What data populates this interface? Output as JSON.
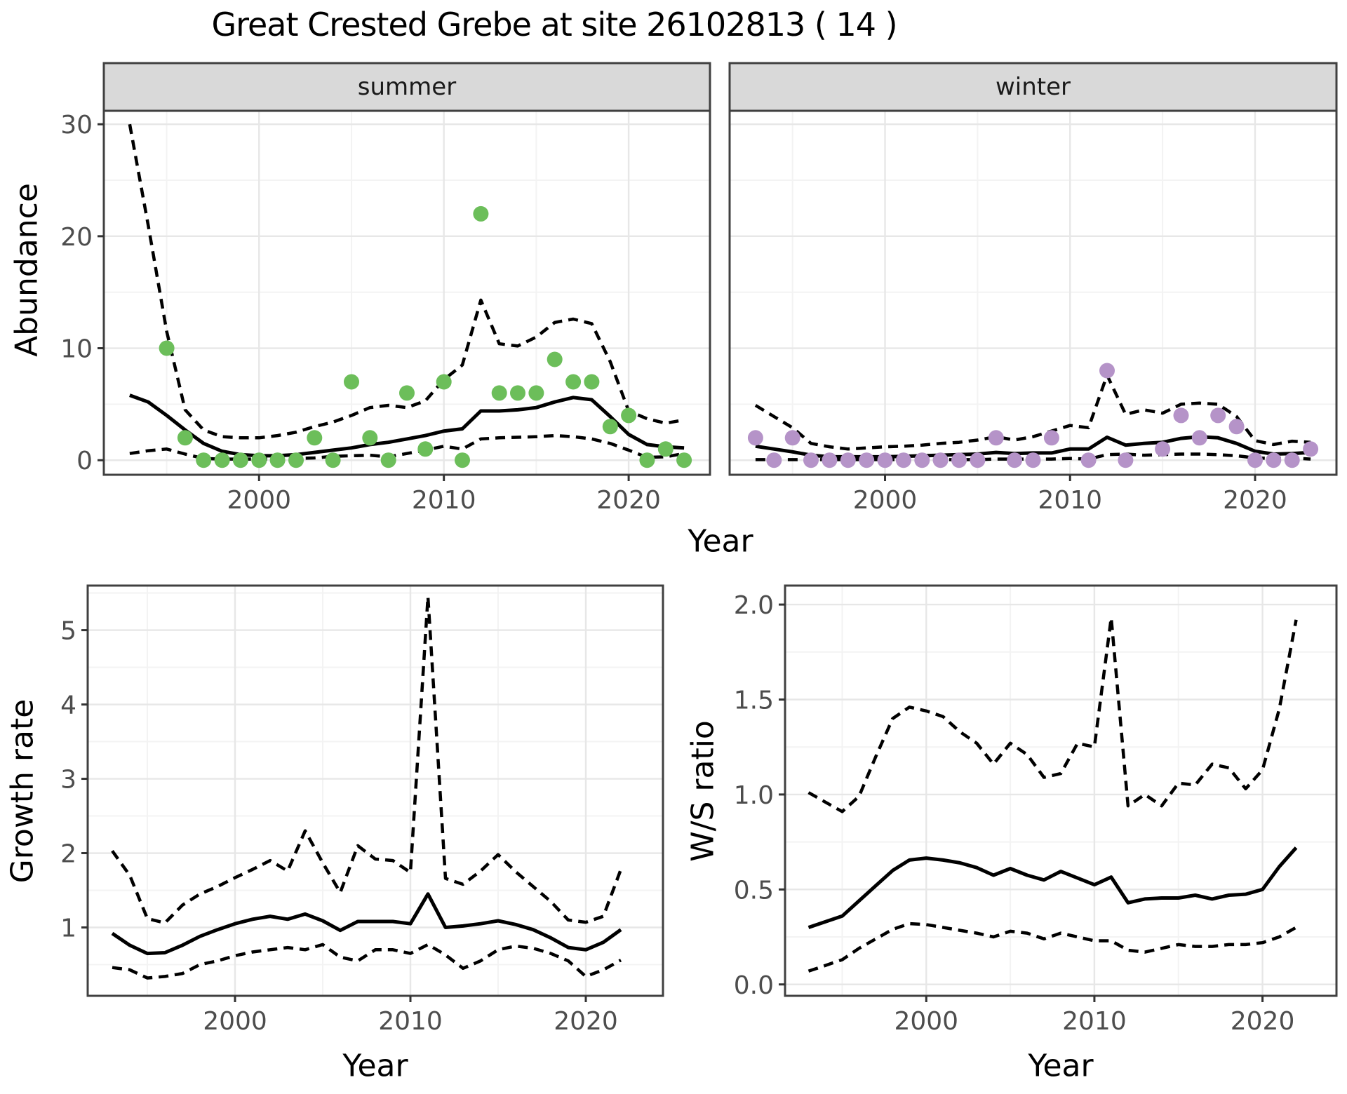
{
  "title": "Great Crested Grebe at site 26102813 ( 14 )",
  "colors": {
    "point_summer": "#6cbe5a",
    "point_winter": "#b593c8",
    "line": "#000000",
    "strip_bg": "#d9d9d9",
    "panel_border": "#404040",
    "tick_mark": "#333333",
    "grid_major": "#e7e7e7",
    "grid_minor": "#f3f3f3",
    "tick_text": "#4d4d4d"
  },
  "chart_data": [
    {
      "id": "abundance_summer",
      "type": "line+scatter",
      "facet_label": "summer",
      "ylabel": "Abundance",
      "xlabel": "Year",
      "xlim": [
        1991.6,
        2024.4
      ],
      "ylim": [
        -1.3,
        31.2
      ],
      "xticks": [
        2000,
        2010,
        2020
      ],
      "xtick_labels": [
        "2000",
        "2010",
        "2020"
      ],
      "xticks_minor": [
        1995,
        2005,
        2015
      ],
      "yticks": [
        0,
        10,
        20,
        30
      ],
      "ytick_labels": [
        "0",
        "10",
        "20",
        "30"
      ],
      "yticks_minor": [
        5,
        15,
        25
      ],
      "points": {
        "color_key": "point_summer",
        "x": [
          1995,
          1996,
          1997,
          1998,
          1999,
          2000,
          2001,
          2002,
          2003,
          2004,
          2005,
          2006,
          2007,
          2008,
          2009,
          2010,
          2011,
          2012,
          2013,
          2014,
          2015,
          2016,
          2017,
          2018,
          2019,
          2020,
          2021,
          2022,
          2023
        ],
        "y": [
          10,
          2,
          0,
          0,
          0,
          0,
          0,
          0,
          2,
          0,
          7,
          2,
          0,
          6,
          1,
          7,
          0,
          22,
          6,
          6,
          6,
          9,
          7,
          7,
          3,
          4,
          0,
          1,
          0
        ]
      },
      "series": [
        {
          "name": "upper-ci",
          "style": "dashed",
          "x": [
            1993,
            1994,
            1995,
            1996,
            1997,
            1998,
            1999,
            2000,
            2001,
            2002,
            2003,
            2004,
            2005,
            2006,
            2007,
            2008,
            2009,
            2010,
            2011,
            2012,
            2013,
            2014,
            2015,
            2016,
            2017,
            2018,
            2019,
            2020,
            2021,
            2022,
            2023
          ],
          "y": [
            30,
            21,
            11.5,
            4.5,
            2.7,
            2.1,
            2.0,
            2.0,
            2.2,
            2.5,
            3.0,
            3.4,
            4.0,
            4.7,
            4.9,
            4.7,
            5.3,
            7.2,
            8.5,
            14.3,
            10.4,
            10.2,
            11.0,
            12.3,
            12.6,
            12.2,
            8.8,
            4.4,
            3.7,
            3.3,
            3.6
          ]
        },
        {
          "name": "lower-ci",
          "style": "dashed",
          "x": [
            1993,
            1994,
            1995,
            1996,
            1997,
            1998,
            1999,
            2000,
            2001,
            2002,
            2003,
            2004,
            2005,
            2006,
            2007,
            2008,
            2009,
            2010,
            2011,
            2012,
            2013,
            2014,
            2015,
            2016,
            2017,
            2018,
            2019,
            2020,
            2021,
            2022,
            2023
          ],
          "y": [
            0.6,
            0.85,
            1.0,
            0.55,
            0.15,
            0.1,
            0.1,
            0.1,
            0.1,
            0.15,
            0.2,
            0.35,
            0.4,
            0.45,
            0.3,
            0.6,
            0.9,
            1.25,
            1.0,
            1.9,
            2.0,
            2.05,
            2.1,
            2.2,
            2.1,
            1.9,
            1.5,
            0.9,
            0.25,
            0.3,
            0.6
          ]
        },
        {
          "name": "fit",
          "style": "solid",
          "x": [
            1993,
            1994,
            1995,
            1996,
            1997,
            1998,
            1999,
            2000,
            2001,
            2002,
            2003,
            2004,
            2005,
            2006,
            2007,
            2008,
            2009,
            2010,
            2011,
            2012,
            2013,
            2014,
            2015,
            2016,
            2017,
            2018,
            2019,
            2020,
            2021,
            2022,
            2023
          ],
          "y": [
            5.8,
            5.2,
            4.0,
            2.7,
            1.5,
            0.8,
            0.5,
            0.4,
            0.4,
            0.5,
            0.7,
            0.9,
            1.1,
            1.4,
            1.6,
            1.9,
            2.2,
            2.6,
            2.8,
            4.4,
            4.4,
            4.5,
            4.7,
            5.2,
            5.6,
            5.4,
            3.9,
            2.3,
            1.4,
            1.2,
            1.1
          ]
        }
      ]
    },
    {
      "id": "abundance_winter",
      "type": "line+scatter",
      "facet_label": "winter",
      "ylabel": "",
      "xlabel": "Year",
      "xlim": [
        1991.6,
        2024.4
      ],
      "ylim": [
        -1.3,
        31.2
      ],
      "xticks": [
        2000,
        2010,
        2020
      ],
      "xtick_labels": [
        "2000",
        "2010",
        "2020"
      ],
      "xticks_minor": [
        1995,
        2005,
        2015
      ],
      "yticks": [
        0,
        10,
        20,
        30
      ],
      "ytick_labels": [
        "0",
        "10",
        "20",
        "30"
      ],
      "yticks_minor": [
        5,
        15,
        25
      ],
      "points": {
        "color_key": "point_winter",
        "x": [
          1993,
          1994,
          1995,
          1996,
          1997,
          1998,
          1999,
          2000,
          2001,
          2002,
          2003,
          2004,
          2005,
          2006,
          2007,
          2008,
          2009,
          2011,
          2012,
          2013,
          2015,
          2016,
          2017,
          2018,
          2019,
          2020,
          2021,
          2022,
          2023
        ],
        "y": [
          2,
          0,
          2,
          0,
          0,
          0,
          0,
          0,
          0,
          0,
          0,
          0,
          0,
          2,
          0,
          0,
          2,
          0,
          8,
          0,
          1,
          4,
          2,
          4,
          3,
          0,
          0,
          0,
          1
        ]
      },
      "series": [
        {
          "name": "upper-ci",
          "style": "dashed",
          "x": [
            1993,
            1994,
            1995,
            1996,
            1997,
            1998,
            1999,
            2000,
            2001,
            2002,
            2003,
            2004,
            2005,
            2006,
            2007,
            2008,
            2009,
            2010,
            2011,
            2012,
            2013,
            2014,
            2015,
            2016,
            2017,
            2018,
            2019,
            2020,
            2021,
            2022,
            2023
          ],
          "y": [
            4.9,
            3.9,
            2.9,
            1.5,
            1.2,
            1.0,
            1.1,
            1.2,
            1.25,
            1.35,
            1.5,
            1.6,
            1.8,
            2.1,
            1.8,
            2.1,
            2.6,
            3.1,
            2.9,
            7.6,
            4.1,
            4.5,
            4.2,
            5.0,
            5.1,
            5.0,
            3.9,
            1.75,
            1.4,
            1.7,
            1.6
          ]
        },
        {
          "name": "lower-ci",
          "style": "dashed",
          "x": [
            1993,
            1994,
            1995,
            1996,
            1997,
            1998,
            1999,
            2000,
            2001,
            2002,
            2003,
            2004,
            2005,
            2006,
            2007,
            2008,
            2009,
            2010,
            2011,
            2012,
            2013,
            2014,
            2015,
            2016,
            2017,
            2018,
            2019,
            2020,
            2021,
            2022,
            2023
          ],
          "y": [
            0.05,
            0.05,
            0.05,
            0.05,
            0.05,
            0.05,
            0.05,
            0.05,
            0.05,
            0.05,
            0.05,
            0.05,
            0.05,
            0.1,
            0.1,
            0.1,
            0.1,
            0.15,
            0.1,
            0.5,
            0.55,
            0.45,
            0.5,
            0.55,
            0.55,
            0.5,
            0.4,
            0.2,
            0.15,
            0.2,
            0.1
          ]
        },
        {
          "name": "fit",
          "style": "solid",
          "x": [
            1993,
            1994,
            1995,
            1996,
            1997,
            1998,
            1999,
            2000,
            2001,
            2002,
            2003,
            2004,
            2005,
            2006,
            2007,
            2008,
            2009,
            2010,
            2011,
            2012,
            2013,
            2014,
            2015,
            2016,
            2017,
            2018,
            2019,
            2020,
            2021,
            2022,
            2023
          ],
          "y": [
            1.25,
            1.0,
            0.75,
            0.45,
            0.3,
            0.3,
            0.3,
            0.3,
            0.35,
            0.4,
            0.45,
            0.5,
            0.55,
            0.7,
            0.6,
            0.65,
            0.65,
            1.0,
            1.0,
            2.05,
            1.35,
            1.5,
            1.6,
            1.95,
            2.1,
            2.0,
            1.5,
            0.8,
            0.55,
            0.6,
            0.7
          ]
        }
      ]
    },
    {
      "id": "growth_rate",
      "type": "line",
      "facet_label": "",
      "ylabel": "Growth rate",
      "xlabel": "Year",
      "xlim": [
        1991.6,
        2024.4
      ],
      "ylim": [
        0.08,
        5.6
      ],
      "xticks": [
        2000,
        2010,
        2020
      ],
      "xtick_labels": [
        "2000",
        "2010",
        "2020"
      ],
      "xticks_minor": [
        1995,
        2005,
        2015
      ],
      "yticks": [
        1,
        2,
        3,
        4,
        5
      ],
      "ytick_labels": [
        "1",
        "2",
        "3",
        "4",
        "5"
      ],
      "yticks_minor": [
        0.5,
        1.5,
        2.5,
        3.5,
        4.5,
        5.5
      ],
      "points": null,
      "series": [
        {
          "name": "upper-ci",
          "style": "dashed",
          "x": [
            1993,
            1994,
            1995,
            1996,
            1997,
            1998,
            1999,
            2000,
            2001,
            2002,
            2003,
            2004,
            2005,
            2006,
            2007,
            2008,
            2009,
            2010,
            2011,
            2012,
            2013,
            2014,
            2015,
            2016,
            2017,
            2018,
            2019,
            2020,
            2021,
            2022
          ],
          "y": [
            2.03,
            1.7,
            1.12,
            1.06,
            1.3,
            1.45,
            1.55,
            1.67,
            1.78,
            1.9,
            1.76,
            2.3,
            1.87,
            1.47,
            2.1,
            1.92,
            1.9,
            1.74,
            5.45,
            1.66,
            1.58,
            1.76,
            1.98,
            1.75,
            1.55,
            1.35,
            1.1,
            1.07,
            1.15,
            1.78
          ]
        },
        {
          "name": "lower-ci",
          "style": "dashed",
          "x": [
            1993,
            1994,
            1995,
            1996,
            1997,
            1998,
            1999,
            2000,
            2001,
            2002,
            2003,
            2004,
            2005,
            2006,
            2007,
            2008,
            2009,
            2010,
            2011,
            2012,
            2013,
            2014,
            2015,
            2016,
            2017,
            2018,
            2019,
            2020,
            2021,
            2022
          ],
          "y": [
            0.46,
            0.43,
            0.32,
            0.34,
            0.38,
            0.5,
            0.55,
            0.62,
            0.67,
            0.7,
            0.73,
            0.7,
            0.77,
            0.6,
            0.55,
            0.7,
            0.7,
            0.65,
            0.77,
            0.63,
            0.45,
            0.55,
            0.7,
            0.75,
            0.72,
            0.65,
            0.55,
            0.34,
            0.43,
            0.56
          ]
        },
        {
          "name": "fit",
          "style": "solid",
          "x": [
            1993,
            1994,
            1995,
            1996,
            1997,
            1998,
            1999,
            2000,
            2001,
            2002,
            2003,
            2004,
            2005,
            2006,
            2007,
            2008,
            2009,
            2010,
            2011,
            2012,
            2013,
            2014,
            2015,
            2016,
            2017,
            2018,
            2019,
            2020,
            2021,
            2022
          ],
          "y": [
            0.92,
            0.76,
            0.65,
            0.66,
            0.76,
            0.88,
            0.97,
            1.05,
            1.11,
            1.15,
            1.11,
            1.18,
            1.09,
            0.96,
            1.08,
            1.08,
            1.08,
            1.05,
            1.45,
            1.0,
            1.02,
            1.05,
            1.09,
            1.04,
            0.97,
            0.86,
            0.73,
            0.7,
            0.8,
            0.97
          ]
        }
      ]
    },
    {
      "id": "ws_ratio",
      "type": "line",
      "facet_label": "",
      "ylabel": "W/S ratio",
      "xlabel": "Year",
      "xlim": [
        1991.6,
        2024.4
      ],
      "ylim": [
        -0.06,
        2.1
      ],
      "xticks": [
        2000,
        2010,
        2020
      ],
      "xtick_labels": [
        "2000",
        "2010",
        "2020"
      ],
      "xticks_minor": [
        1995,
        2005,
        2015
      ],
      "yticks": [
        0.0,
        0.5,
        1.0,
        1.5,
        2.0
      ],
      "ytick_labels": [
        "0.0",
        "0.5",
        "1.0",
        "1.5",
        "2.0"
      ],
      "yticks_minor": [
        0.25,
        0.75,
        1.25,
        1.75
      ],
      "points": null,
      "series": [
        {
          "name": "upper-ci",
          "style": "dashed",
          "x": [
            1993,
            1994,
            1995,
            1996,
            1997,
            1998,
            1999,
            2000,
            2001,
            2002,
            2003,
            2004,
            2005,
            2006,
            2007,
            2008,
            2009,
            2010,
            2011,
            2012,
            2013,
            2014,
            2015,
            2016,
            2017,
            2018,
            2019,
            2020,
            2021,
            2022
          ],
          "y": [
            1.01,
            0.96,
            0.91,
            0.99,
            1.2,
            1.4,
            1.46,
            1.44,
            1.41,
            1.33,
            1.27,
            1.16,
            1.27,
            1.21,
            1.09,
            1.11,
            1.27,
            1.25,
            1.93,
            0.94,
            1.0,
            0.94,
            1.06,
            1.05,
            1.16,
            1.14,
            1.03,
            1.13,
            1.45,
            1.92
          ]
        },
        {
          "name": "lower-ci",
          "style": "dashed",
          "x": [
            1993,
            1994,
            1995,
            1996,
            1997,
            1998,
            1999,
            2000,
            2001,
            2002,
            2003,
            2004,
            2005,
            2006,
            2007,
            2008,
            2009,
            2010,
            2011,
            2012,
            2013,
            2014,
            2015,
            2016,
            2017,
            2018,
            2019,
            2020,
            2021,
            2022
          ],
          "y": [
            0.07,
            0.1,
            0.13,
            0.19,
            0.24,
            0.29,
            0.32,
            0.315,
            0.3,
            0.285,
            0.27,
            0.25,
            0.28,
            0.27,
            0.24,
            0.27,
            0.25,
            0.23,
            0.23,
            0.18,
            0.17,
            0.19,
            0.21,
            0.2,
            0.2,
            0.21,
            0.21,
            0.22,
            0.25,
            0.3
          ]
        },
        {
          "name": "fit",
          "style": "solid",
          "x": [
            1993,
            1994,
            1995,
            1996,
            1997,
            1998,
            1999,
            2000,
            2001,
            2002,
            2003,
            2004,
            2005,
            2006,
            2007,
            2008,
            2009,
            2010,
            2011,
            2012,
            2013,
            2014,
            2015,
            2016,
            2017,
            2018,
            2019,
            2020,
            2021,
            2022
          ],
          "y": [
            0.3,
            0.33,
            0.36,
            0.44,
            0.52,
            0.6,
            0.655,
            0.665,
            0.655,
            0.64,
            0.615,
            0.575,
            0.61,
            0.575,
            0.55,
            0.595,
            0.56,
            0.525,
            0.565,
            0.43,
            0.45,
            0.455,
            0.455,
            0.47,
            0.45,
            0.47,
            0.475,
            0.5,
            0.62,
            0.72
          ]
        }
      ]
    }
  ]
}
